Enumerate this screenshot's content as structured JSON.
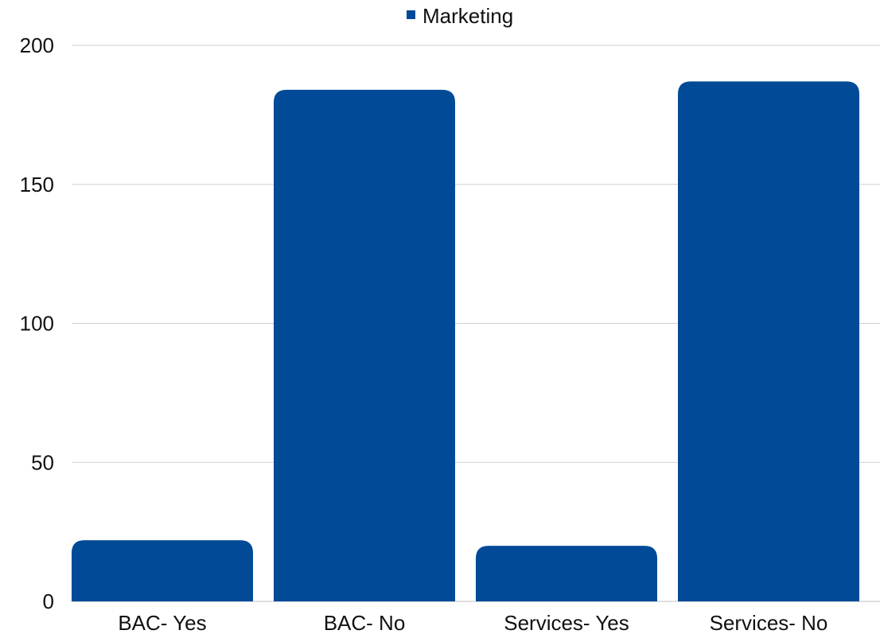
{
  "chart_data": {
    "type": "bar",
    "categories": [
      "BAC- Yes",
      "BAC- No",
      "Services- Yes",
      "Services- No"
    ],
    "series": [
      {
        "name": "Marketing",
        "values": [
          22,
          184,
          20,
          187
        ]
      }
    ],
    "ylim": [
      0,
      200
    ],
    "yticks": [
      "0",
      "50",
      "100",
      "150",
      "200"
    ],
    "grid": true,
    "legend_position": "top-center",
    "colors": {
      "bar": "#004A97",
      "grid": "#cfcfcf",
      "axis": "#bfbfbf",
      "text": "#111111"
    }
  }
}
